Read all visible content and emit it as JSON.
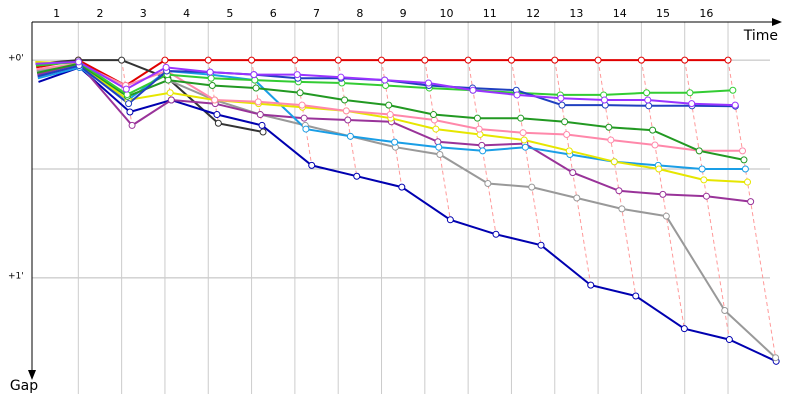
{
  "chart_data": {
    "type": "line",
    "x_label": "Time",
    "y_label": "Gap",
    "xticks": [
      1,
      2,
      3,
      4,
      5,
      6,
      7,
      8,
      9,
      10,
      11,
      12,
      13,
      14,
      15,
      16
    ],
    "x": [
      0,
      1,
      2,
      3,
      4,
      5,
      6,
      7,
      8,
      9,
      10,
      11,
      12,
      13,
      14,
      15,
      16
    ],
    "xlim": [
      0,
      17.2
    ],
    "ylim": [
      -10.5,
      92
    ],
    "yticks": [
      {
        "value": 0,
        "label": "+0'"
      },
      {
        "value": 30,
        "label": null
      },
      {
        "value": 60,
        "label": "+1'"
      }
    ],
    "series": [
      {
        "color": "#e00000",
        "values": [
          2,
          0,
          7,
          0,
          0,
          0,
          0,
          0,
          0,
          0,
          0,
          0,
          0,
          0,
          0,
          0,
          0
        ]
      },
      {
        "color": "#333333",
        "values": [
          1,
          0,
          0,
          5,
          17.4,
          19.8,
          null,
          null,
          null,
          null,
          null,
          null,
          null,
          null,
          null,
          null,
          null
        ]
      },
      {
        "color": "#0000b0",
        "values": [
          6,
          2,
          14.3,
          11,
          15,
          18,
          29,
          32,
          35,
          44,
          48,
          51,
          62,
          65,
          74,
          77,
          83
        ]
      },
      {
        "color": "#999999",
        "values": [
          3,
          1,
          10,
          5.5,
          11,
          15,
          18,
          21,
          24,
          26,
          34,
          35,
          38,
          41,
          43,
          69,
          82
        ]
      },
      {
        "color": "#993399",
        "values": [
          4,
          1,
          18,
          11,
          12,
          15,
          16,
          16.5,
          17,
          22.5,
          23.5,
          23,
          31,
          36,
          37,
          37.5,
          39
        ]
      },
      {
        "color": "#1a9ee6",
        "values": [
          5,
          2,
          11,
          3,
          4,
          5.5,
          19,
          21,
          22.6,
          24,
          25,
          24,
          26,
          28,
          29,
          30,
          30
        ]
      },
      {
        "color": "#e6e600",
        "values": [
          0.5,
          1,
          11,
          9,
          11,
          12,
          13,
          14,
          16,
          19,
          20.5,
          22,
          25,
          28,
          30,
          33,
          33.6
        ]
      },
      {
        "color": "#ff88aa",
        "values": [
          2.5,
          1,
          7,
          3,
          11,
          11.5,
          12.4,
          14,
          15,
          16.5,
          19,
          20,
          20.5,
          22,
          23.4,
          25,
          25
        ]
      },
      {
        "color": "#229922",
        "values": [
          3.5,
          1,
          10,
          5.5,
          7,
          7.7,
          9,
          11,
          12.4,
          15,
          16,
          16,
          17,
          18.5,
          19.3,
          25,
          27.5
        ]
      },
      {
        "color": "#33cc33",
        "values": [
          1.5,
          0.5,
          9.5,
          4,
          5,
          5.5,
          6,
          6.3,
          7,
          7.7,
          8.3,
          9,
          9.6,
          9.6,
          9,
          9,
          8.3
        ]
      },
      {
        "color": "#2040c0",
        "values": [
          4.5,
          1.5,
          12,
          3,
          3.3,
          4,
          5,
          5,
          5.5,
          7,
          7.7,
          8.3,
          12.4,
          12.4,
          12.6,
          12.6,
          12.7
        ]
      },
      {
        "color": "#9933ff",
        "values": [
          1,
          0.5,
          8,
          2,
          3.3,
          4,
          4,
          4.7,
          5.5,
          6.3,
          8.3,
          9.6,
          10.5,
          11,
          11,
          12,
          12.4
        ]
      }
    ]
  }
}
